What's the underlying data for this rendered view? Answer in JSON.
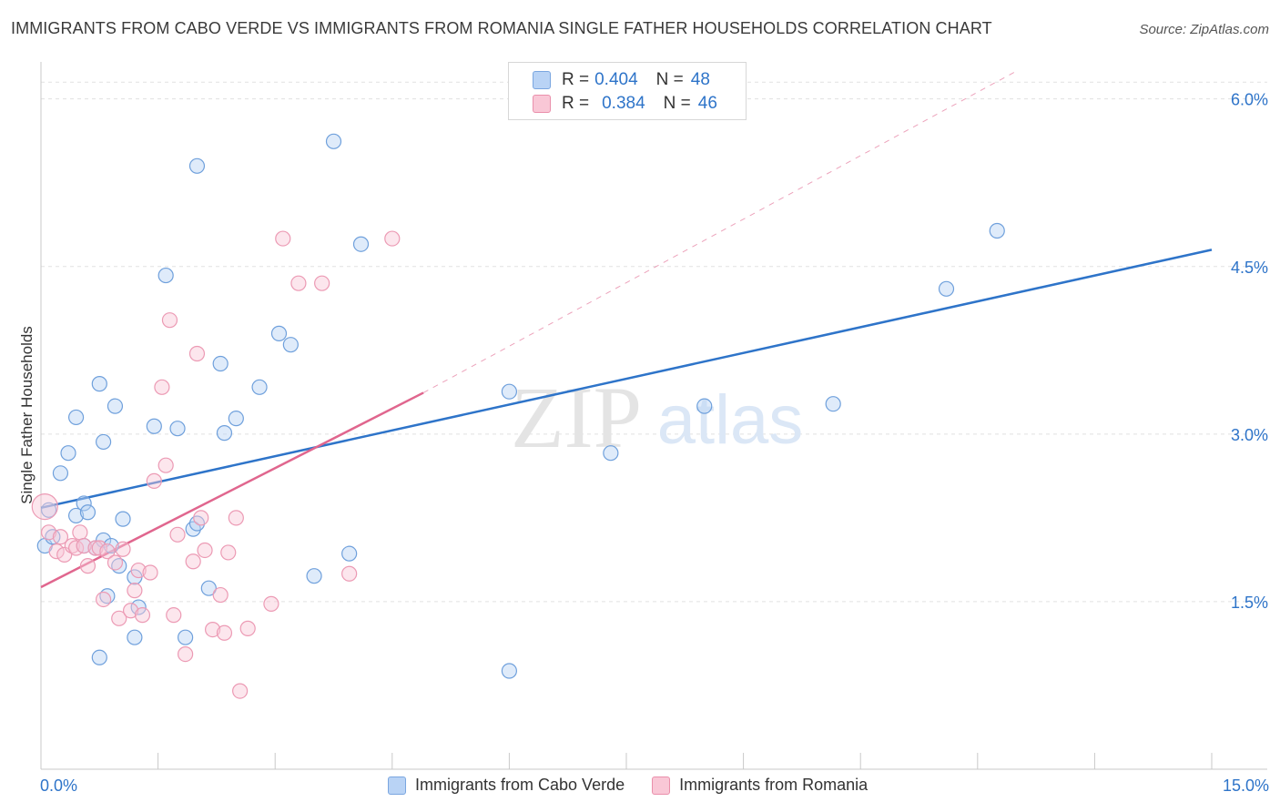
{
  "title": "IMMIGRANTS FROM CABO VERDE VS IMMIGRANTS FROM ROMANIA SINGLE FATHER HOUSEHOLDS CORRELATION CHART",
  "source": "Source: ZipAtlas.com",
  "watermark": {
    "zip": "ZIP",
    "atlas": "atlas"
  },
  "legend": {
    "r_label": "R =",
    "n_label": "N =",
    "series": [
      {
        "r": "0.404",
        "n": "48",
        "fill": "#b9d3f5",
        "stroke": "#7aa6e0"
      },
      {
        "r": "0.384",
        "n": "46",
        "fill": "#f9c7d6",
        "stroke": "#ea8fab"
      }
    ]
  },
  "colors": {
    "blue_line": "#2e74c9",
    "pink_line": "#e0668e",
    "blue_point": "#6fa0dc",
    "pink_point": "#ec9ab4",
    "accent_text": "#2e74c9",
    "grid": "#e1e1e1"
  },
  "chart_data": {
    "type": "scatter",
    "title": "IMMIGRANTS FROM CABO VERDE VS IMMIGRANTS FROM ROMANIA SINGLE FATHER HOUSEHOLDS CORRELATION CHART",
    "xlabel": "",
    "ylabel": "Single Father Households",
    "xlim": [
      0,
      15
    ],
    "ylim": [
      0,
      6.25
    ],
    "x_tick_labels": [
      "0.0%",
      "15.0%"
    ],
    "y_ticks": [
      1.5,
      3.0,
      4.5,
      6.0
    ],
    "y_tick_labels": [
      "1.5%",
      "3.0%",
      "4.5%",
      "6.0%"
    ],
    "grid": true,
    "legend_position": "top-center",
    "series": [
      {
        "name": "Immigrants from Cabo Verde",
        "color": "#6fa0dc",
        "points": [
          [
            0.05,
            2.0
          ],
          [
            0.1,
            2.32
          ],
          [
            0.15,
            2.08
          ],
          [
            0.25,
            2.65
          ],
          [
            0.35,
            2.83
          ],
          [
            0.45,
            3.15
          ],
          [
            0.45,
            2.27
          ],
          [
            0.55,
            2.38
          ],
          [
            0.6,
            2.3
          ],
          [
            0.7,
            1.98
          ],
          [
            0.75,
            3.45
          ],
          [
            0.8,
            2.93
          ],
          [
            0.75,
            1.0
          ],
          [
            0.85,
            1.55
          ],
          [
            0.95,
            3.25
          ],
          [
            1.0,
            1.82
          ],
          [
            1.05,
            2.24
          ],
          [
            1.2,
            1.72
          ],
          [
            1.25,
            1.45
          ],
          [
            1.2,
            1.18
          ],
          [
            1.45,
            3.07
          ],
          [
            1.6,
            4.42
          ],
          [
            1.75,
            3.05
          ],
          [
            1.85,
            1.18
          ],
          [
            1.95,
            2.15
          ],
          [
            2.0,
            2.2
          ],
          [
            2.0,
            5.4
          ],
          [
            2.15,
            1.62
          ],
          [
            2.3,
            3.63
          ],
          [
            2.35,
            3.01
          ],
          [
            2.5,
            3.14
          ],
          [
            2.8,
            3.42
          ],
          [
            3.05,
            3.9
          ],
          [
            3.2,
            3.8
          ],
          [
            3.5,
            1.73
          ],
          [
            3.75,
            5.62
          ],
          [
            3.95,
            1.93
          ],
          [
            4.1,
            4.7
          ],
          [
            0.55,
            2.0
          ],
          [
            0.8,
            2.05
          ],
          [
            6.0,
            3.38
          ],
          [
            7.3,
            2.83
          ],
          [
            8.5,
            3.25
          ],
          [
            10.15,
            3.27
          ],
          [
            11.6,
            4.3
          ],
          [
            12.25,
            4.82
          ],
          [
            6.0,
            0.88
          ],
          [
            0.9,
            2.0
          ]
        ]
      },
      {
        "name": "Immigrants from Romania",
        "color": "#ec9ab4",
        "points": [
          [
            0.05,
            2.35
          ],
          [
            0.1,
            2.12
          ],
          [
            0.2,
            1.95
          ],
          [
            0.25,
            2.08
          ],
          [
            0.3,
            1.92
          ],
          [
            0.4,
            2.0
          ],
          [
            0.45,
            1.98
          ],
          [
            0.5,
            2.12
          ],
          [
            0.55,
            2.0
          ],
          [
            0.6,
            1.82
          ],
          [
            0.7,
            1.98
          ],
          [
            0.75,
            1.98
          ],
          [
            0.8,
            1.52
          ],
          [
            0.85,
            1.95
          ],
          [
            0.95,
            1.85
          ],
          [
            1.0,
            1.35
          ],
          [
            1.05,
            1.97
          ],
          [
            1.15,
            1.42
          ],
          [
            1.2,
            1.6
          ],
          [
            1.25,
            1.78
          ],
          [
            1.3,
            1.38
          ],
          [
            1.4,
            1.76
          ],
          [
            1.45,
            2.58
          ],
          [
            1.55,
            3.42
          ],
          [
            1.6,
            2.72
          ],
          [
            1.65,
            4.02
          ],
          [
            1.7,
            1.38
          ],
          [
            1.75,
            2.1
          ],
          [
            1.85,
            1.03
          ],
          [
            1.95,
            1.86
          ],
          [
            2.0,
            3.72
          ],
          [
            2.05,
            2.25
          ],
          [
            2.1,
            1.96
          ],
          [
            2.2,
            1.25
          ],
          [
            2.3,
            1.56
          ],
          [
            2.35,
            1.22
          ],
          [
            2.4,
            1.94
          ],
          [
            2.5,
            2.25
          ],
          [
            2.55,
            0.7
          ],
          [
            2.65,
            1.26
          ],
          [
            2.95,
            1.48
          ],
          [
            3.1,
            4.75
          ],
          [
            3.3,
            4.35
          ],
          [
            3.6,
            4.35
          ],
          [
            3.95,
            1.75
          ],
          [
            4.5,
            4.75
          ]
        ]
      }
    ],
    "trend_lines": [
      {
        "series": "Immigrants from Cabo Verde",
        "x": [
          0,
          15
        ],
        "y": [
          2.34,
          4.65
        ]
      },
      {
        "series": "Immigrants from Romania",
        "x": [
          0,
          4.9
        ],
        "y": [
          1.63,
          3.37
        ],
        "dashed_extension_to": [
          12.5,
          6.25
        ]
      }
    ]
  }
}
